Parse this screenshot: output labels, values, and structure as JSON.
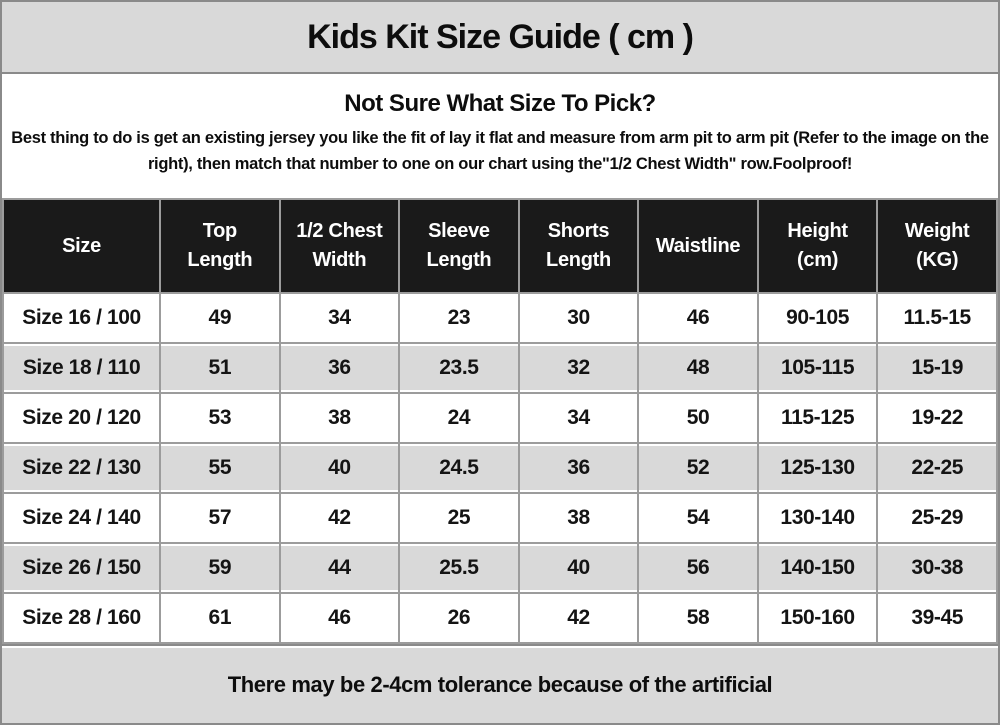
{
  "title": "Kids Kit Size Guide ( cm )",
  "intro": {
    "heading": "Not Sure What Size To Pick?",
    "body": "Best thing to do is get an existing jersey you like the fit of lay it flat and measure from arm pit to arm pit (Refer to the image on the right), then match that number to one on our chart using the\"1/2 Chest Width\" row.Foolproof!"
  },
  "table": {
    "columns": [
      "Size",
      "Top Length",
      "1/2 Chest Width",
      "Sleeve Length",
      "Shorts Length",
      "Waistline",
      "Height (cm)",
      "Weight (KG)"
    ],
    "rows": [
      [
        "Size 16 / 100",
        "49",
        "34",
        "23",
        "30",
        "46",
        "90-105",
        "11.5-15"
      ],
      [
        "Size 18 / 110",
        "51",
        "36",
        "23.5",
        "32",
        "48",
        "105-115",
        "15-19"
      ],
      [
        "Size 20 / 120",
        "53",
        "38",
        "24",
        "34",
        "50",
        "115-125",
        "19-22"
      ],
      [
        "Size 22 / 130",
        "55",
        "40",
        "24.5",
        "36",
        "52",
        "125-130",
        "22-25"
      ],
      [
        "Size 24 / 140",
        "57",
        "42",
        "25",
        "38",
        "54",
        "130-140",
        "25-29"
      ],
      [
        "Size 26 / 150",
        "59",
        "44",
        "25.5",
        "40",
        "56",
        "140-150",
        "30-38"
      ],
      [
        "Size 28 / 160",
        "61",
        "46",
        "26",
        "42",
        "58",
        "150-160",
        "39-45"
      ]
    ]
  },
  "footer": {
    "note": "There may be 2-4cm tolerance because of the artificial"
  },
  "colors": {
    "band_bg": "#d9d9d9",
    "table_header_bg": "#1a1a1a",
    "table_header_text": "#ffffff",
    "row_alt_bg": "#d9d9d9",
    "border": "#9c9c9c",
    "outer_border": "#8a8a8a",
    "text": "#0d0d0d"
  }
}
